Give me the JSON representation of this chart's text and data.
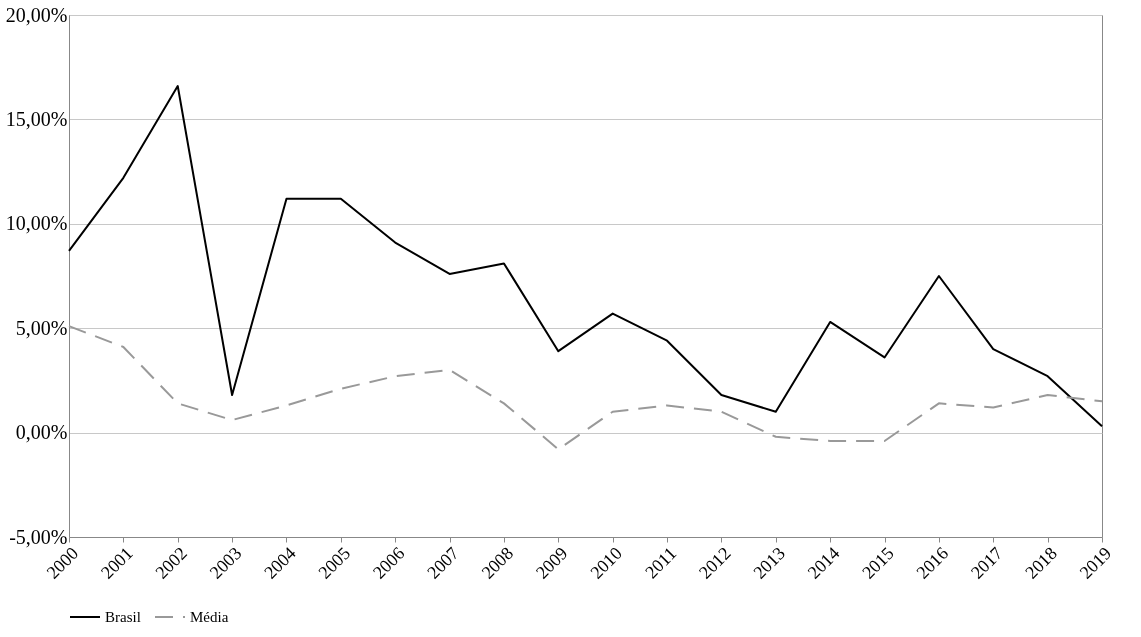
{
  "chart_data": {
    "type": "line",
    "categories": [
      "2000",
      "2001",
      "2002",
      "2003",
      "2004",
      "2005",
      "2006",
      "2007",
      "2008",
      "2009",
      "2010",
      "2011",
      "2012",
      "2013",
      "2014",
      "2015",
      "2016",
      "2017",
      "2018",
      "2019"
    ],
    "series": [
      {
        "name": "Brasil",
        "color": "#000000",
        "line_style": "solid",
        "values": [
          8.7,
          12.2,
          16.6,
          1.8,
          11.2,
          11.2,
          9.1,
          7.6,
          8.1,
          3.9,
          5.7,
          4.4,
          1.8,
          1.0,
          5.3,
          3.6,
          7.5,
          4.0,
          2.7,
          0.3
        ]
      },
      {
        "name": "Média",
        "color": "#999999",
        "line_style": "dashed",
        "values": [
          5.1,
          4.1,
          1.4,
          0.6,
          1.3,
          2.1,
          2.7,
          3.0,
          1.4,
          -0.8,
          1.0,
          1.3,
          1.0,
          -0.2,
          -0.4,
          -0.4,
          1.4,
          1.2,
          1.8,
          1.5
        ]
      }
    ],
    "ylim": [
      -5,
      20
    ],
    "yticks": [
      {
        "value": -5,
        "label": "-5,00%"
      },
      {
        "value": 0,
        "label": "0,00%"
      },
      {
        "value": 5,
        "label": "5,00%"
      },
      {
        "value": 10,
        "label": "10,00%"
      },
      {
        "value": 15,
        "label": "15,00%"
      },
      {
        "value": 20,
        "label": "20,00%"
      }
    ],
    "grid": "y",
    "legend": "bottom",
    "marker": "none"
  }
}
